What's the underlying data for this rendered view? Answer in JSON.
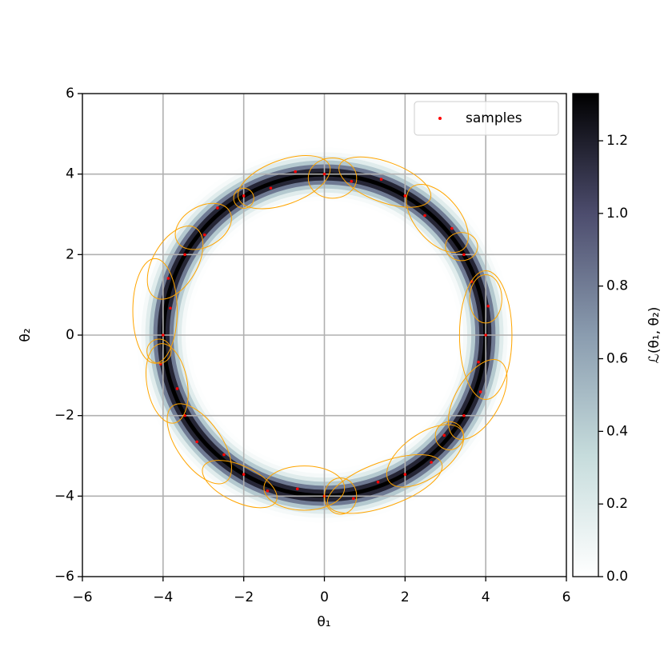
{
  "chart_data": {
    "type": "ring-density",
    "xlabel": "θ₁",
    "ylabel": "θ₂",
    "colorbar_label": "ℒ(θ₁, θ₂)",
    "xlim": [
      -6,
      6
    ],
    "ylim": [
      -6,
      6
    ],
    "xticks": [
      {
        "value": -6,
        "label": "−6"
      },
      {
        "value": -4,
        "label": "−4"
      },
      {
        "value": -2,
        "label": "−2"
      },
      0,
      2,
      4,
      6
    ],
    "yticks": [
      {
        "value": -6,
        "label": "−6"
      },
      {
        "value": -4,
        "label": "−4"
      },
      {
        "value": -2,
        "label": "−2"
      },
      0,
      2,
      4,
      6
    ],
    "grid": true,
    "legend": "upper right",
    "clim": [
      0,
      1.33
    ],
    "cticks": [
      {
        "value": 0,
        "label": "0.0"
      },
      {
        "value": 0.2,
        "label": "0.2"
      },
      {
        "value": 0.4,
        "label": "0.4"
      },
      {
        "value": 0.6,
        "label": "0.6"
      },
      {
        "value": 0.8,
        "label": "0.8"
      },
      {
        "value": 1.0,
        "label": "1.0"
      },
      {
        "value": 1.2,
        "label": "1.2"
      }
    ],
    "colormap": [
      "#ffffff",
      "#c6dcdc",
      "#8a9caf",
      "#4d4d6e",
      "#000000"
    ],
    "heatmap": {
      "r": [
        3.4,
        3.5,
        3.6,
        3.7,
        3.8,
        3.9,
        4.0,
        4.1,
        4.2,
        4.3,
        4.4,
        4.5,
        4.6
      ],
      "values": [
        0.01,
        0.06,
        0.18,
        0.43,
        0.81,
        1.17,
        1.33,
        1.17,
        0.81,
        0.43,
        0.18,
        0.06,
        0.01
      ]
    },
    "series": [
      {
        "name": "samples",
        "color": "#ff0000",
        "x": [
          4.0,
          4.06,
          3.65,
          3.46,
          3.16,
          2.49,
          2.0,
          1.41,
          0.67,
          0,
          -0.72,
          -1.33,
          -2.0,
          -2.65,
          -2.97,
          -3.46,
          -3.87,
          -3.82,
          -4.0,
          -4.06,
          -3.65,
          -3.46,
          -3.16,
          -2.49,
          -2.0,
          -1.41,
          -0.67,
          0,
          0.72,
          1.33,
          2.0,
          2.65,
          2.97,
          3.46,
          3.87,
          3.82
        ],
        "values": [
          0,
          0.72,
          1.33,
          2.0,
          2.65,
          2.97,
          3.46,
          3.87,
          3.82,
          4.0,
          4.06,
          3.65,
          3.46,
          3.16,
          2.49,
          2.0,
          1.41,
          0.67,
          0,
          -0.72,
          -1.33,
          -2.0,
          -2.65,
          -2.97,
          -3.46,
          -3.87,
          -3.82,
          -4.0,
          -4.06,
          -3.65,
          -3.46,
          -3.16,
          -2.49,
          -2.0,
          -1.41,
          -0.67
        ]
      }
    ],
    "ellipses": {
      "color": "#ffa500",
      "x": [
        -1.0,
        0.2,
        1.5,
        2.8,
        3.4,
        4.0,
        4.0,
        3.8,
        3.1,
        2.5,
        1.5,
        -0.5,
        0.4,
        -2.1,
        -3.1,
        -3.9,
        -4.1,
        -4.2,
        -3.7,
        -3.0,
        -2.0
      ],
      "y": [
        3.8,
        3.9,
        3.8,
        2.9,
        2.2,
        0.9,
        0.0,
        -1.6,
        -2.5,
        -3.0,
        -3.7,
        -3.8,
        -4.0,
        -3.7,
        -2.7,
        -1.2,
        -0.4,
        0.6,
        1.8,
        2.7,
        3.4
      ],
      "width": [
        2.4,
        1.2,
        2.4,
        2.0,
        0.8,
        0.8,
        1.3,
        2.2,
        0.7,
        2.2,
        3.0,
        2.0,
        0.8,
        2.0,
        2.3,
        1.0,
        0.6,
        1.1,
        1.1,
        1.5,
        0.5
      ],
      "height": [
        1.1,
        1.0,
        1.0,
        1.1,
        0.7,
        1.2,
        3.2,
        1.1,
        0.7,
        1.1,
        1.1,
        1.1,
        0.9,
        0.9,
        1.1,
        2.0,
        0.6,
        2.6,
        2.0,
        1.0,
        0.5
      ],
      "angle": [
        20,
        0,
        -20,
        -50,
        0,
        0,
        0,
        60,
        0,
        35,
        20,
        0,
        0,
        -25,
        -55,
        10,
        0,
        0,
        -30,
        30,
        0
      ]
    }
  }
}
